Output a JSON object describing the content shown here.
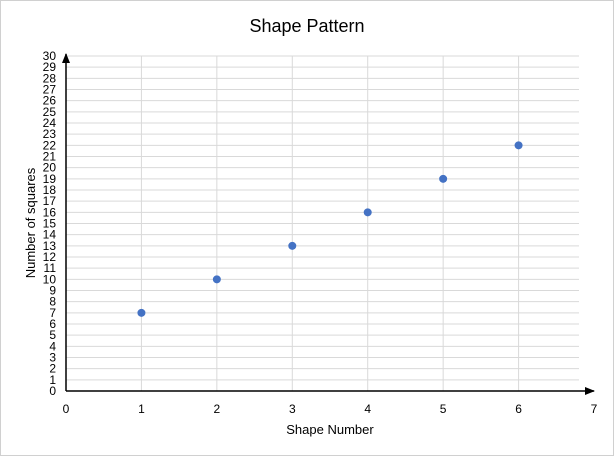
{
  "chart_data": {
    "type": "scatter",
    "title": "Shape Pattern",
    "xlabel": "Shape Number",
    "ylabel": "Number of squares",
    "xlim": [
      0,
      7
    ],
    "ylim": [
      0,
      30
    ],
    "x_ticks": [
      0,
      1,
      2,
      3,
      4,
      5,
      6,
      7
    ],
    "y_ticks": [
      0,
      1,
      2,
      3,
      4,
      5,
      6,
      7,
      8,
      9,
      10,
      11,
      12,
      13,
      14,
      15,
      16,
      17,
      18,
      19,
      20,
      21,
      22,
      23,
      24,
      25,
      26,
      27,
      28,
      29,
      30
    ],
    "series": [
      {
        "x": [
          1,
          2,
          3,
          4,
          5,
          6
        ],
        "y": [
          7,
          10,
          13,
          16,
          19,
          22
        ],
        "color": "#4472C4"
      }
    ],
    "grid": true,
    "legend": false
  }
}
